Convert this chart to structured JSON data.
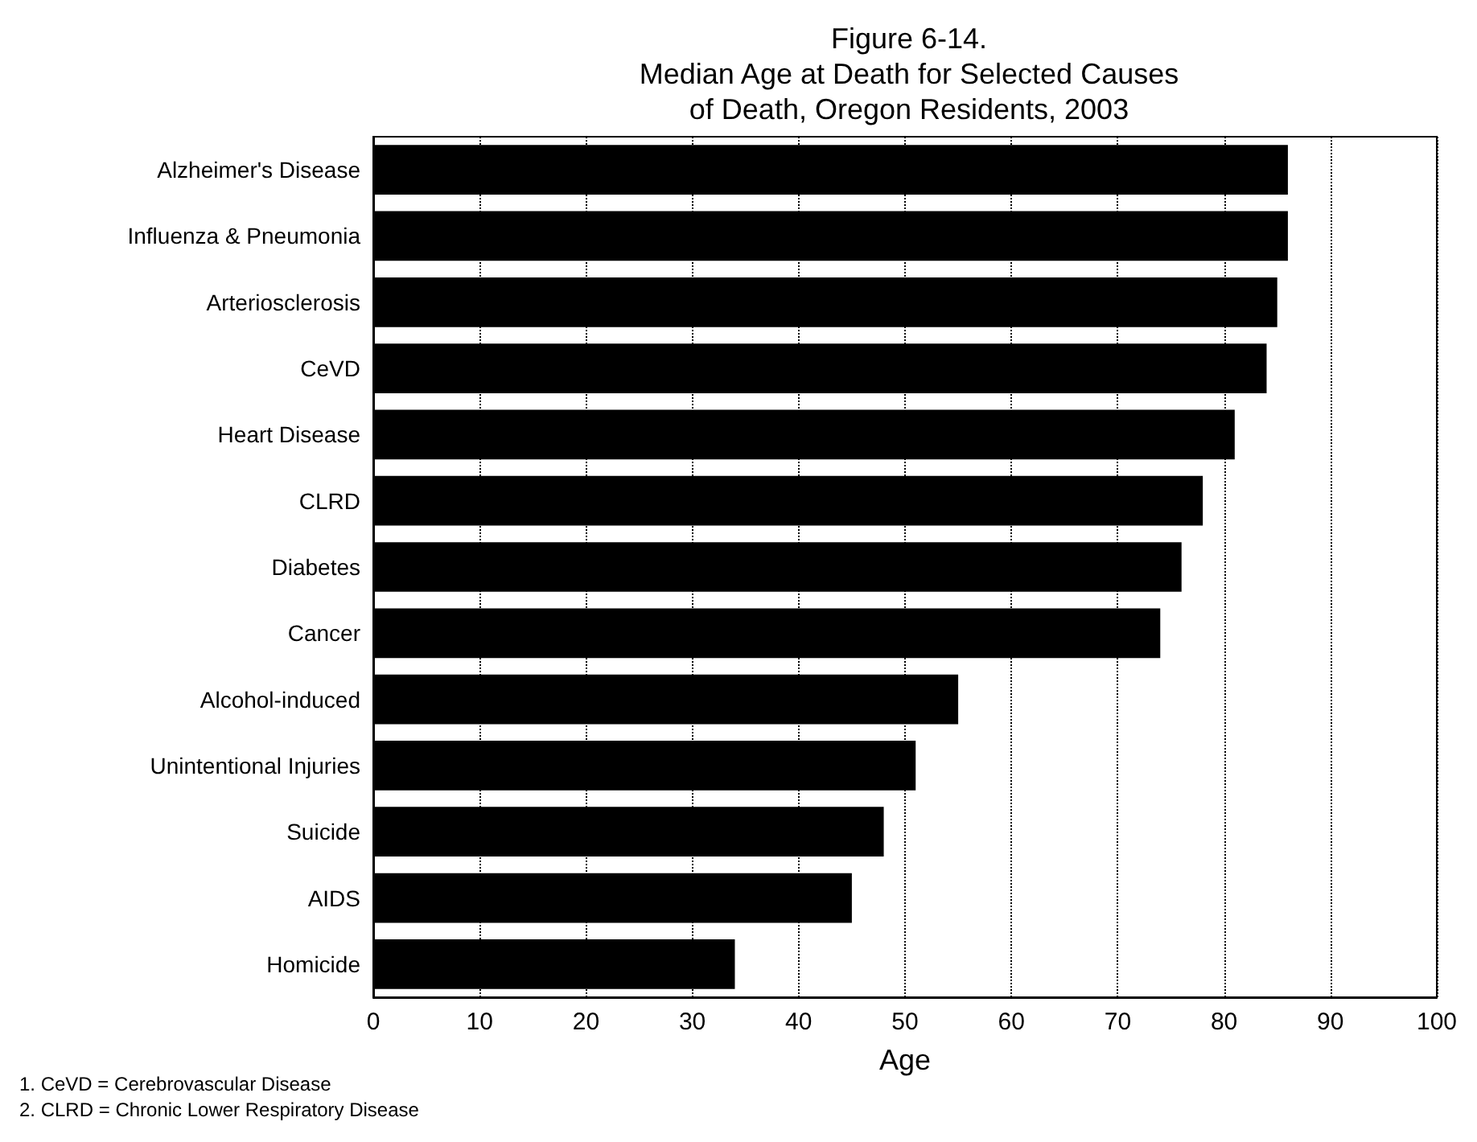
{
  "chart_data": {
    "type": "bar",
    "orientation": "horizontal",
    "title": "Figure 6-14.\nMedian Age at Death for Selected Causes\nof Death, Oregon Residents, 2003",
    "xlabel": "Age",
    "categories": [
      "Alzheimer's Disease",
      "Influenza & Pneumonia",
      "Arteriosclerosis",
      "CeVD",
      "Heart Disease",
      "CLRD",
      "Diabetes",
      "Cancer",
      "Alcohol-induced",
      "Unintentional Injuries",
      "Suicide",
      "AIDS",
      "Homicide"
    ],
    "values": [
      86,
      86,
      85,
      84,
      81,
      78,
      76,
      74,
      55,
      51,
      48,
      45,
      34
    ],
    "color": "#000000",
    "xlim": [
      0,
      100
    ],
    "xticks": [
      0,
      10,
      20,
      30,
      40,
      50,
      60,
      70,
      80,
      90,
      100
    ],
    "grid": "x",
    "annotations": [
      "1. CeVD = Cerebrovascular Disease",
      "2. CLRD = Chronic Lower Respiratory Disease"
    ]
  }
}
